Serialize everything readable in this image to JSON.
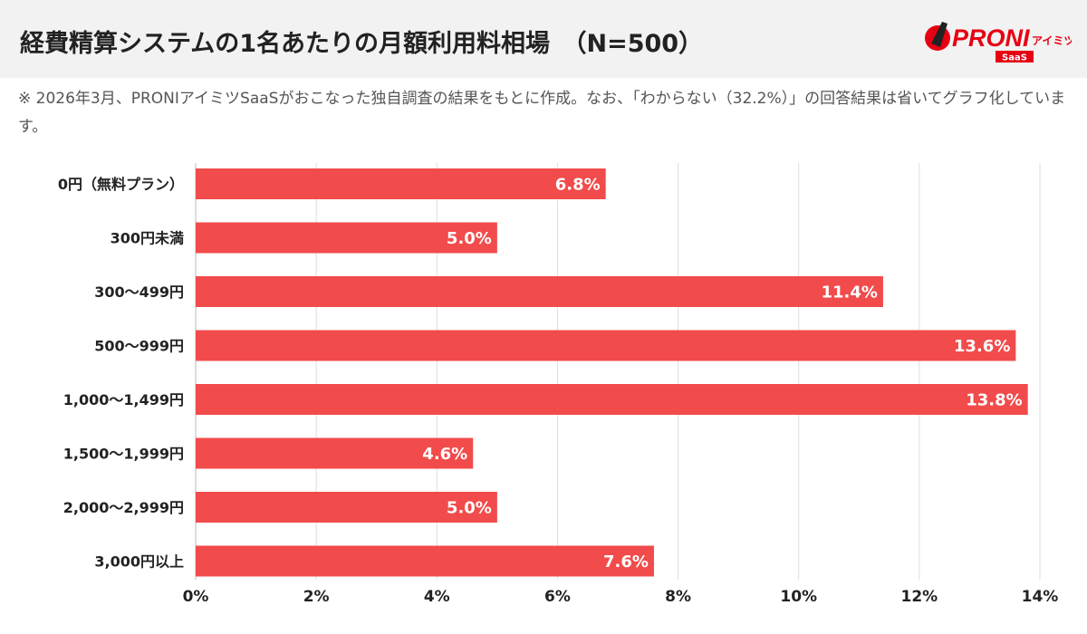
{
  "header": {
    "title": "経費精算システムの1名あたりの月額利用料相場　（N=500）",
    "logo": {
      "text": "PRONI",
      "sub": "アイミツ",
      "badge": "SaaS"
    }
  },
  "note": "※ 2026年3月、PRONIアイミツSaaSがおこなった独自調査の結果をもとに作成。なお、「わからない（32.2%）」の回答結果は省いてグラフ化しています。",
  "colors": {
    "bar": "#f24b4b",
    "brand": "#e60012",
    "header_bg": "#f2f2f2"
  },
  "chart_data": {
    "type": "bar",
    "orientation": "horizontal",
    "categories": [
      "0円（無料プラン）",
      "300円未満",
      "300〜499円",
      "500〜999円",
      "1,000〜1,499円",
      "1,500〜1,999円",
      "2,000〜2,999円",
      "3,000円以上"
    ],
    "values": [
      6.8,
      5.0,
      11.4,
      13.6,
      13.8,
      4.6,
      5.0,
      7.6
    ],
    "data_labels": [
      "6.8%",
      "5.0%",
      "11.4%",
      "13.6%",
      "13.8%",
      "4.6%",
      "5.0%",
      "7.6%"
    ],
    "xlim": [
      0,
      14
    ],
    "xticks": [
      0,
      2,
      4,
      6,
      8,
      10,
      12,
      14
    ],
    "xtick_labels": [
      "0%",
      "2%",
      "4%",
      "6%",
      "8%",
      "10%",
      "12%",
      "14%"
    ],
    "grid": "vertical"
  }
}
